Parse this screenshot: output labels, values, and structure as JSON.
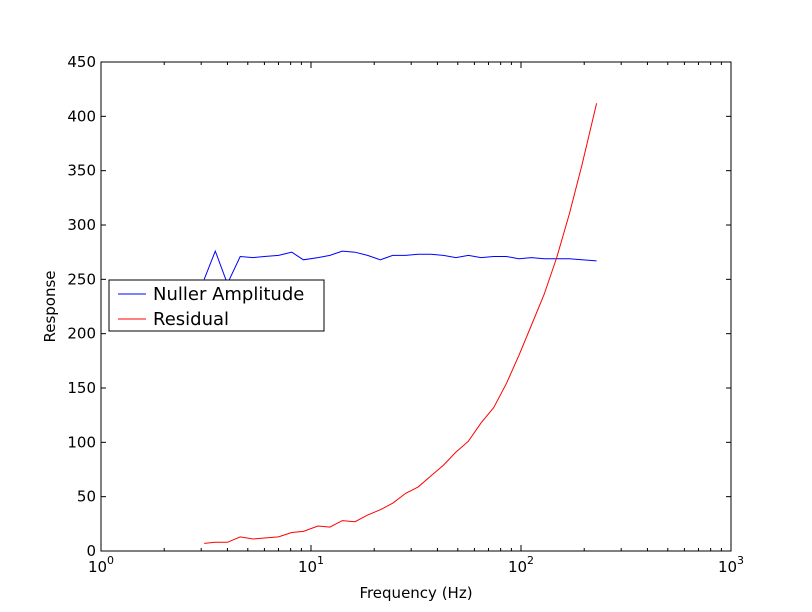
{
  "chart_data": {
    "type": "line",
    "xscale": "log",
    "xlabel": "Frequency (Hz)",
    "ylabel": "Response",
    "xlim": [
      1,
      1000
    ],
    "ylim": [
      0,
      450
    ],
    "xticks": [
      {
        "value": 1,
        "base": "10",
        "exp": "0"
      },
      {
        "value": 10,
        "base": "10",
        "exp": "1"
      },
      {
        "value": 100,
        "base": "10",
        "exp": "2"
      },
      {
        "value": 1000,
        "base": "10",
        "exp": "3"
      }
    ],
    "yticks": [
      0,
      50,
      100,
      150,
      200,
      250,
      300,
      350,
      400,
      450
    ],
    "grid": false,
    "legend_position": "center-left",
    "series": [
      {
        "name": "Nuller Amplitude",
        "color": "#0000ff",
        "x": [
          3.1,
          3.5,
          4.0,
          4.6,
          5.3,
          6.0,
          7.0,
          8.1,
          9.2,
          10.8,
          12.3,
          14.1,
          16.2,
          18.6,
          21.4,
          24.5,
          28.2,
          32.4,
          37.2,
          42.7,
          49.0,
          56.2,
          64.6,
          74.1,
          85.1,
          97.7,
          112.2,
          128.8,
          147.9,
          169.8,
          194.9,
          229.1
        ],
        "y": [
          250,
          276,
          246,
          271,
          270,
          271,
          272,
          275,
          268,
          270,
          272,
          276,
          275,
          272,
          268,
          272,
          272,
          273,
          273,
          272,
          270,
          272,
          270,
          271,
          271,
          269,
          270,
          269,
          269,
          269,
          268,
          267
        ]
      },
      {
        "name": "Residual",
        "color": "#ff0000",
        "x": [
          3.1,
          3.5,
          4.0,
          4.6,
          5.3,
          6.0,
          7.0,
          8.1,
          9.2,
          10.8,
          12.3,
          14.1,
          16.2,
          18.6,
          21.4,
          24.5,
          28.2,
          32.4,
          37.2,
          42.7,
          49.0,
          56.2,
          64.6,
          74.1,
          85.1,
          97.7,
          112.2,
          128.8,
          147.9,
          169.8,
          194.9,
          229.1
        ],
        "y": [
          7,
          8,
          8,
          13,
          11,
          12,
          13,
          17,
          18,
          23,
          22,
          28,
          27,
          33,
          38,
          44,
          53,
          59,
          69,
          79,
          91,
          101,
          118,
          132,
          154,
          180,
          208,
          236,
          270,
          310,
          355,
          412
        ]
      }
    ]
  }
}
